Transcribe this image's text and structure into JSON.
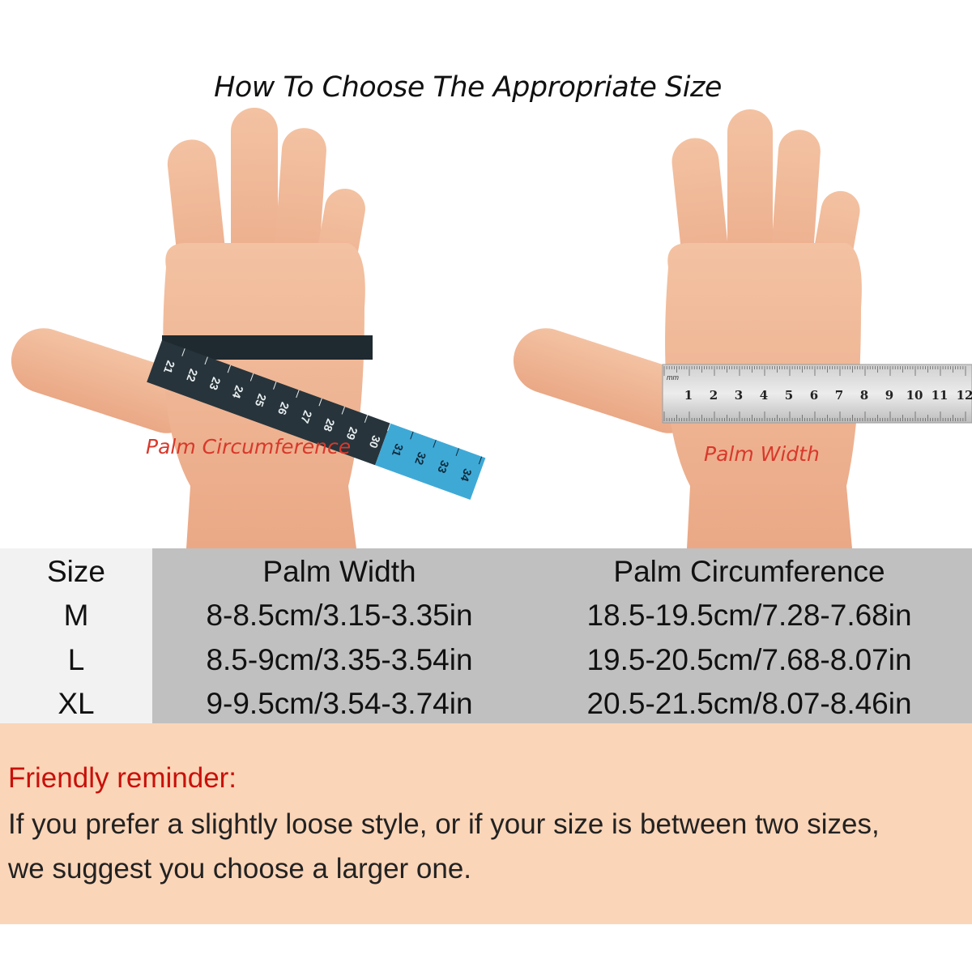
{
  "title": "How To Choose The Appropriate Size",
  "illustration": {
    "left_label": "Palm Circumference",
    "right_label": "Palm Width",
    "tape_numbers_dark": [
      "21",
      "22",
      "23",
      "24",
      "25",
      "26",
      "27",
      "28",
      "29",
      "30"
    ],
    "tape_numbers_blue": [
      "31",
      "32",
      "33",
      "34"
    ],
    "ruler_unit": "mm",
    "ruler_numbers": [
      "1",
      "2",
      "3",
      "4",
      "5",
      "6",
      "7",
      "8",
      "9",
      "10",
      "11",
      "12"
    ]
  },
  "table": {
    "headers": [
      "Size",
      "Palm Width",
      "Palm Circumference"
    ],
    "rows": [
      [
        "M",
        "8-8.5cm/3.15-3.35in",
        "18.5-19.5cm/7.28-7.68in"
      ],
      [
        "L",
        "8.5-9cm/3.35-3.54in",
        "19.5-20.5cm/7.68-8.07in"
      ],
      [
        "XL",
        "9-9.5cm/3.54-3.74in",
        "20.5-21.5cm/8.07-8.46in"
      ]
    ]
  },
  "reminder": {
    "title": "Friendly reminder:",
    "lines": [
      "If you prefer a slightly loose style, or if your size is between two sizes,",
      "we suggest you choose a larger one."
    ]
  },
  "colors": {
    "skin": "#f0b997",
    "label_red": "#d8392b",
    "reminder_red": "#c8100a",
    "table_gray": "#c0c0c0",
    "reminder_bg": "#fbd5b8",
    "tape_dark": "#27343b",
    "tape_blue": "#3fa9d6"
  }
}
